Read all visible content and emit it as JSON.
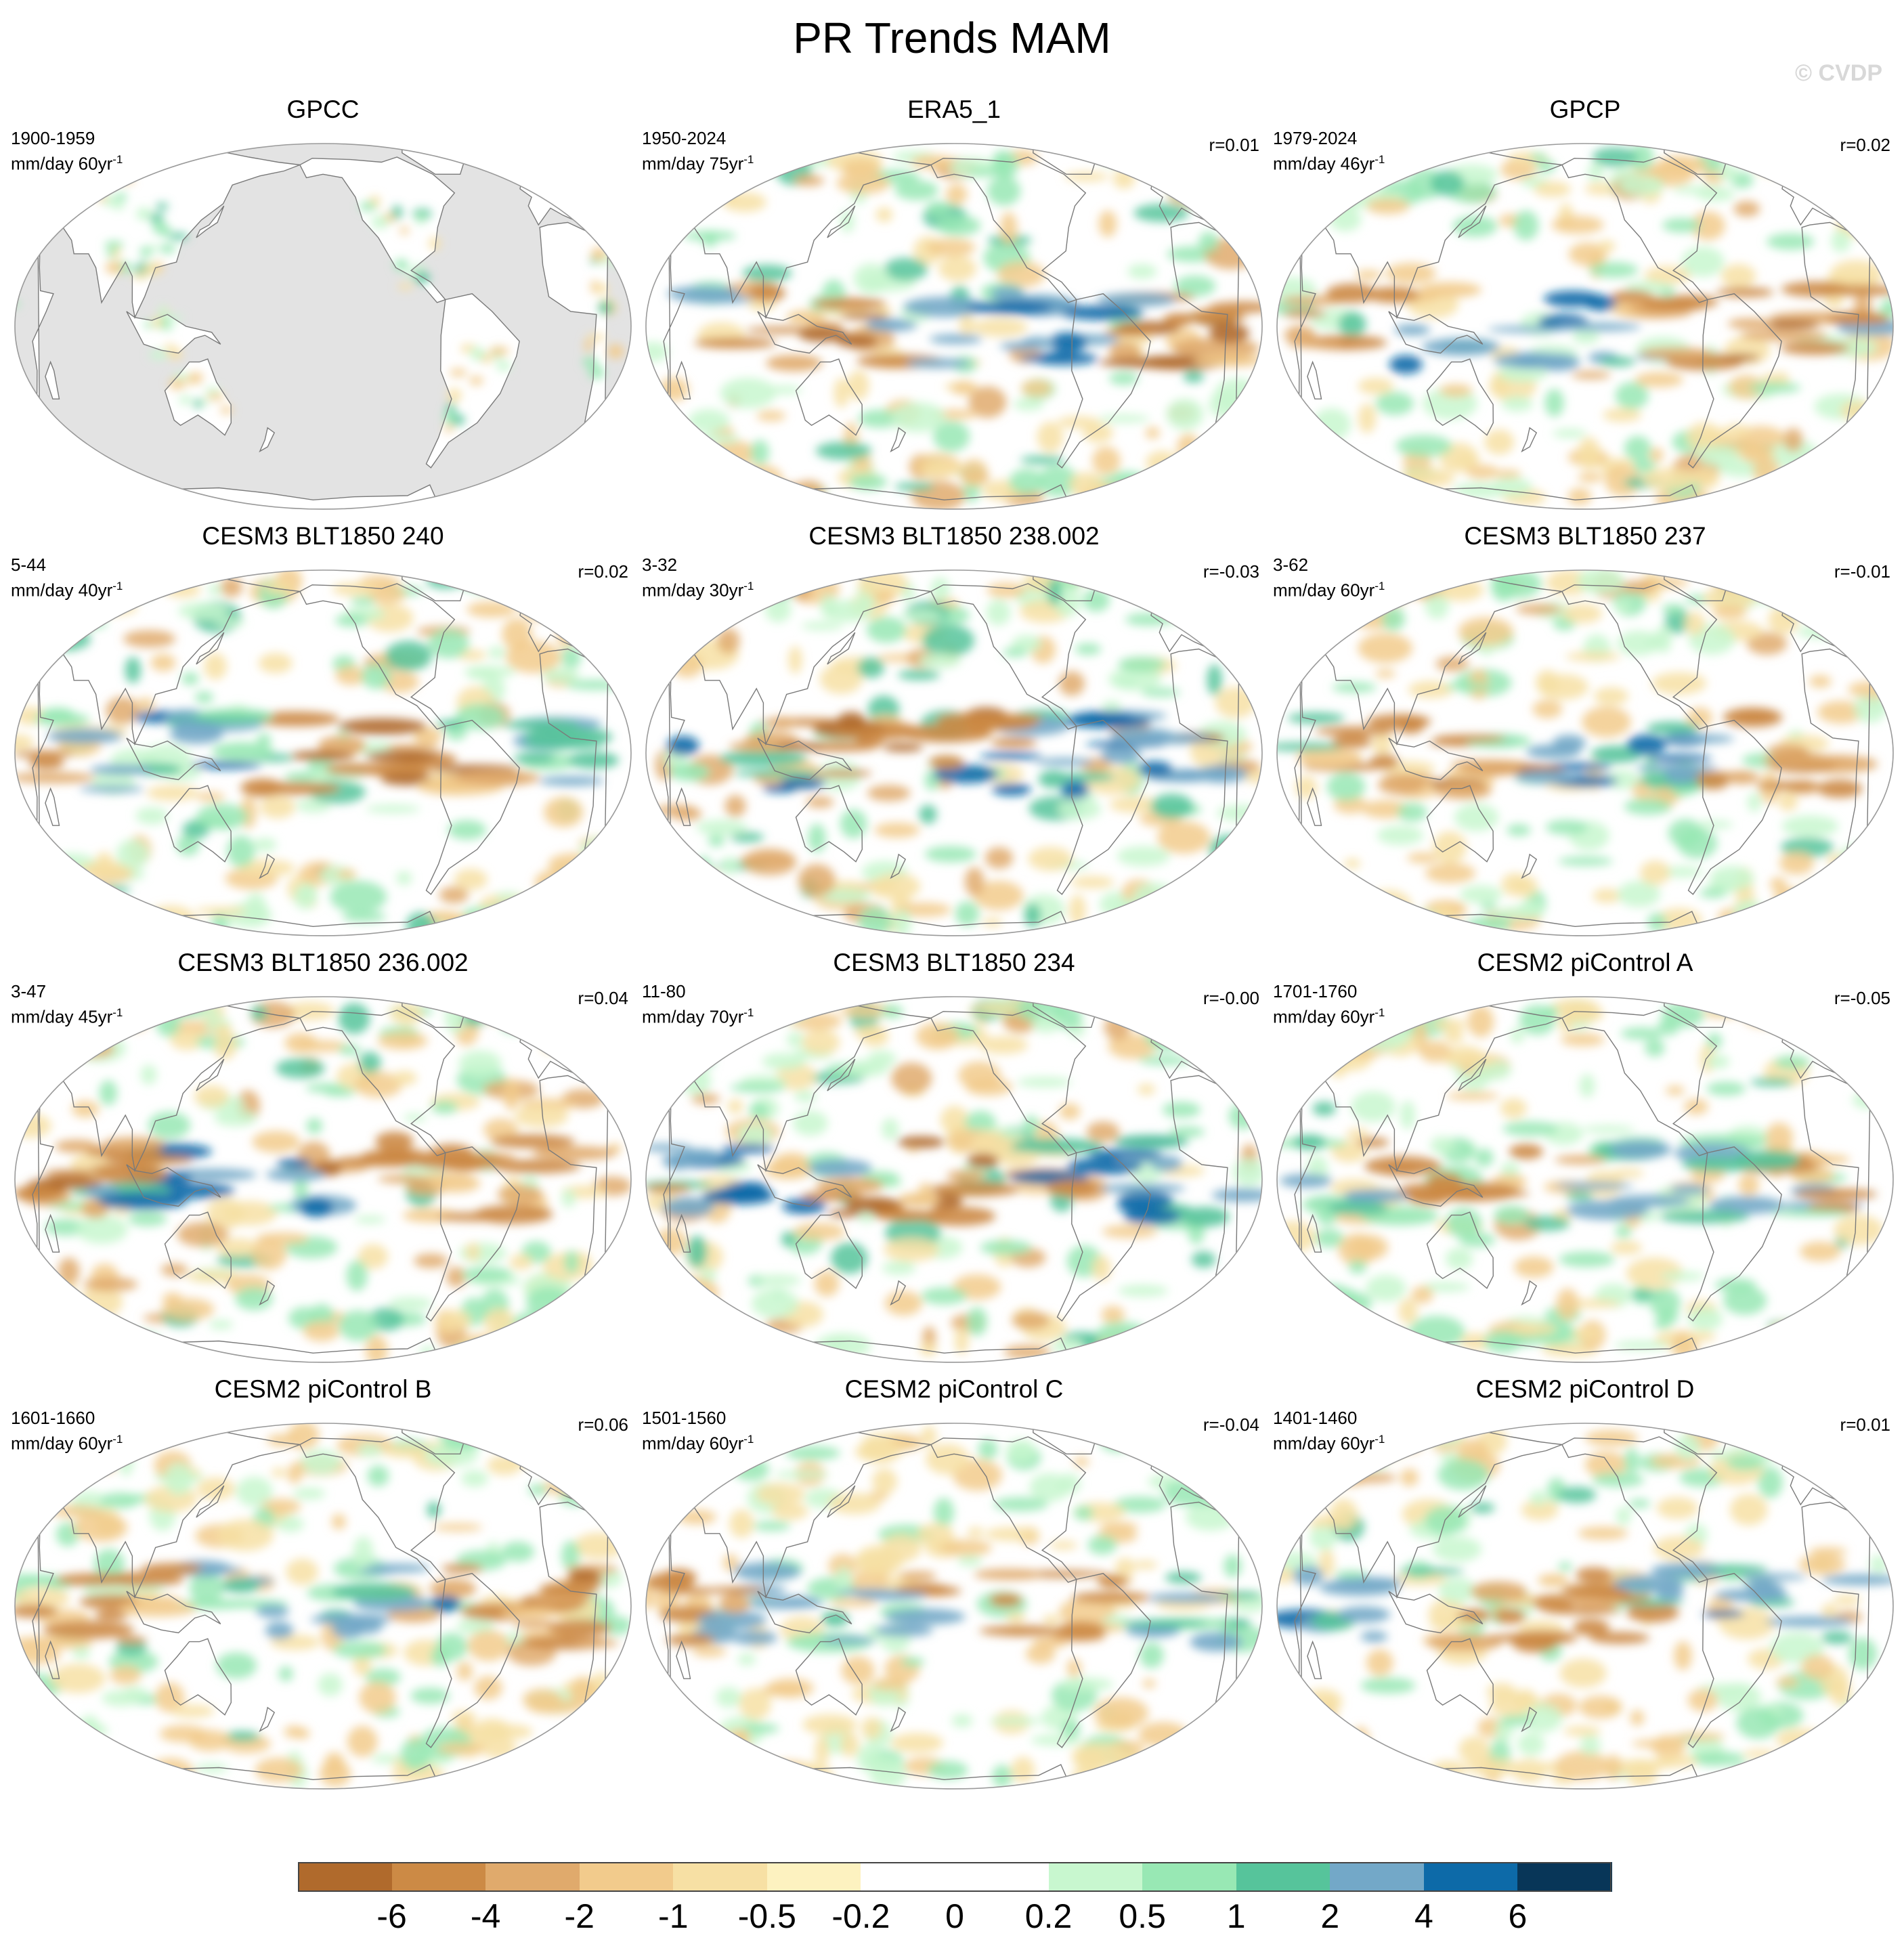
{
  "title": "PR Trends MAM",
  "watermark": "© CVDP",
  "colors": {
    "land_mask": "#e3e3e3",
    "coast": "#7a7a7a",
    "frame": "#9a9a9a",
    "levels": [
      "#b06a2c",
      "#cc8a45",
      "#e0aa6c",
      "#f2cb8c",
      "#f7e0a4",
      "#fdf2c0",
      "#ffffff",
      "#ffffff",
      "#c8f7cf",
      "#98e8b4",
      "#56c49b",
      "#73a8c8",
      "#0d6aa8",
      "#083658"
    ]
  },
  "panels": [
    {
      "title": "GPCC",
      "period": "1900-1959",
      "units": "mm/day 60yr",
      "units_sup": "-1",
      "r": "",
      "land_only": true,
      "strength": 0.6
    },
    {
      "title": "ERA5_1",
      "period": "1950-2024",
      "units": "mm/day 75yr",
      "units_sup": "-1",
      "r": "r=0.01",
      "land_only": false,
      "strength": 0.9
    },
    {
      "title": "GPCP",
      "period": "1979-2024",
      "units": "mm/day 46yr",
      "units_sup": "-1",
      "r": "r=0.02",
      "land_only": false,
      "strength": 0.8
    },
    {
      "title": "CESM3 BLT1850 240",
      "period": "5-44",
      "units": "mm/day 40yr",
      "units_sup": "-1",
      "r": "r=0.02",
      "land_only": false,
      "strength": 0.85
    },
    {
      "title": "CESM3 BLT1850 238.002",
      "period": "3-32",
      "units": "mm/day 30yr",
      "units_sup": "-1",
      "r": "r=-0.03",
      "land_only": false,
      "strength": 1.0
    },
    {
      "title": "CESM3 BLT1850 237",
      "period": "3-62",
      "units": "mm/day 60yr",
      "units_sup": "-1",
      "r": "r=-0.01",
      "land_only": false,
      "strength": 0.8
    },
    {
      "title": "CESM3 BLT1850 236.002",
      "period": "3-47",
      "units": "mm/day 45yr",
      "units_sup": "-1",
      "r": "r=0.04",
      "land_only": false,
      "strength": 0.9
    },
    {
      "title": "CESM3 BLT1850 234",
      "period": "11-80",
      "units": "mm/day 70yr",
      "units_sup": "-1",
      "r": "r=-0.00",
      "land_only": false,
      "strength": 0.9
    },
    {
      "title": "CESM2 piControl A",
      "period": "1701-1760",
      "units": "mm/day 60yr",
      "units_sup": "-1",
      "r": "r=-0.05",
      "land_only": false,
      "strength": 0.75
    },
    {
      "title": "CESM2 piControl B",
      "period": "1601-1660",
      "units": "mm/day 60yr",
      "units_sup": "-1",
      "r": "r=0.06",
      "land_only": false,
      "strength": 0.75
    },
    {
      "title": "CESM2 piControl C",
      "period": "1501-1560",
      "units": "mm/day 60yr",
      "units_sup": "-1",
      "r": "r=-0.04",
      "land_only": false,
      "strength": 0.7
    },
    {
      "title": "CESM2 piControl D",
      "period": "1401-1460",
      "units": "mm/day 60yr",
      "units_sup": "-1",
      "r": "r=0.01",
      "land_only": false,
      "strength": 0.75
    }
  ],
  "colorbar": {
    "labels": [
      "-6",
      "-4",
      "-2",
      "-1",
      "-0.5",
      "-0.2",
      "0",
      "0.2",
      "0.5",
      "1",
      "2",
      "4",
      "6"
    ]
  }
}
